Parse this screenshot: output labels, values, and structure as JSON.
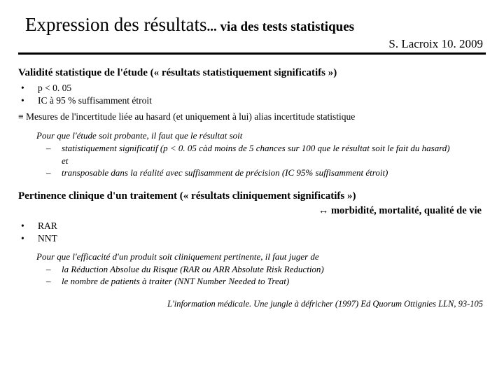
{
  "title": {
    "main": "Expression des résultats",
    "sub": "... via des tests statistiques"
  },
  "author": "S. Lacroix 10. 2009",
  "section1": {
    "heading": "Validité statistique de l'étude (« résultats statistiquement significatifs »)",
    "bullets": [
      "p < 0. 05",
      "IC à 95 % suffisamment étroit"
    ],
    "note": "≡ Mesures de l'incertitude liée au hasard (et uniquement à lui) alias incertitude statistique",
    "italic_intro": "Pour que l'étude soit probante, il faut que le résultat soit",
    "italic_items": [
      "statistiquement significatif (p < 0. 05 càd moins de 5 chances sur 100 que le résultat soit le fait du hasard)",
      "et",
      "transposable dans la réalité avec suffisamment de précision (IC 95% suffisamment étroit)"
    ]
  },
  "section2": {
    "heading": "Pertinence clinique d'un traitement (« résultats cliniquement significatifs »)",
    "subright": "↔ morbidité, mortalité, qualité de vie",
    "bullets": [
      "RAR",
      "NNT"
    ],
    "italic_intro": "Pour que l'efficacité d'un produit soit cliniquement pertinente, il faut juger de",
    "italic_items": [
      "la Réduction Absolue du Risque (RAR ou ARR Absolute Risk Reduction)",
      "le nombre de patients à traiter (NNT Number Needed to Treat)"
    ]
  },
  "reference": "L'information médicale. Une jungle à défricher (1997) Ed Quorum Ottignies LLN, 93-105"
}
